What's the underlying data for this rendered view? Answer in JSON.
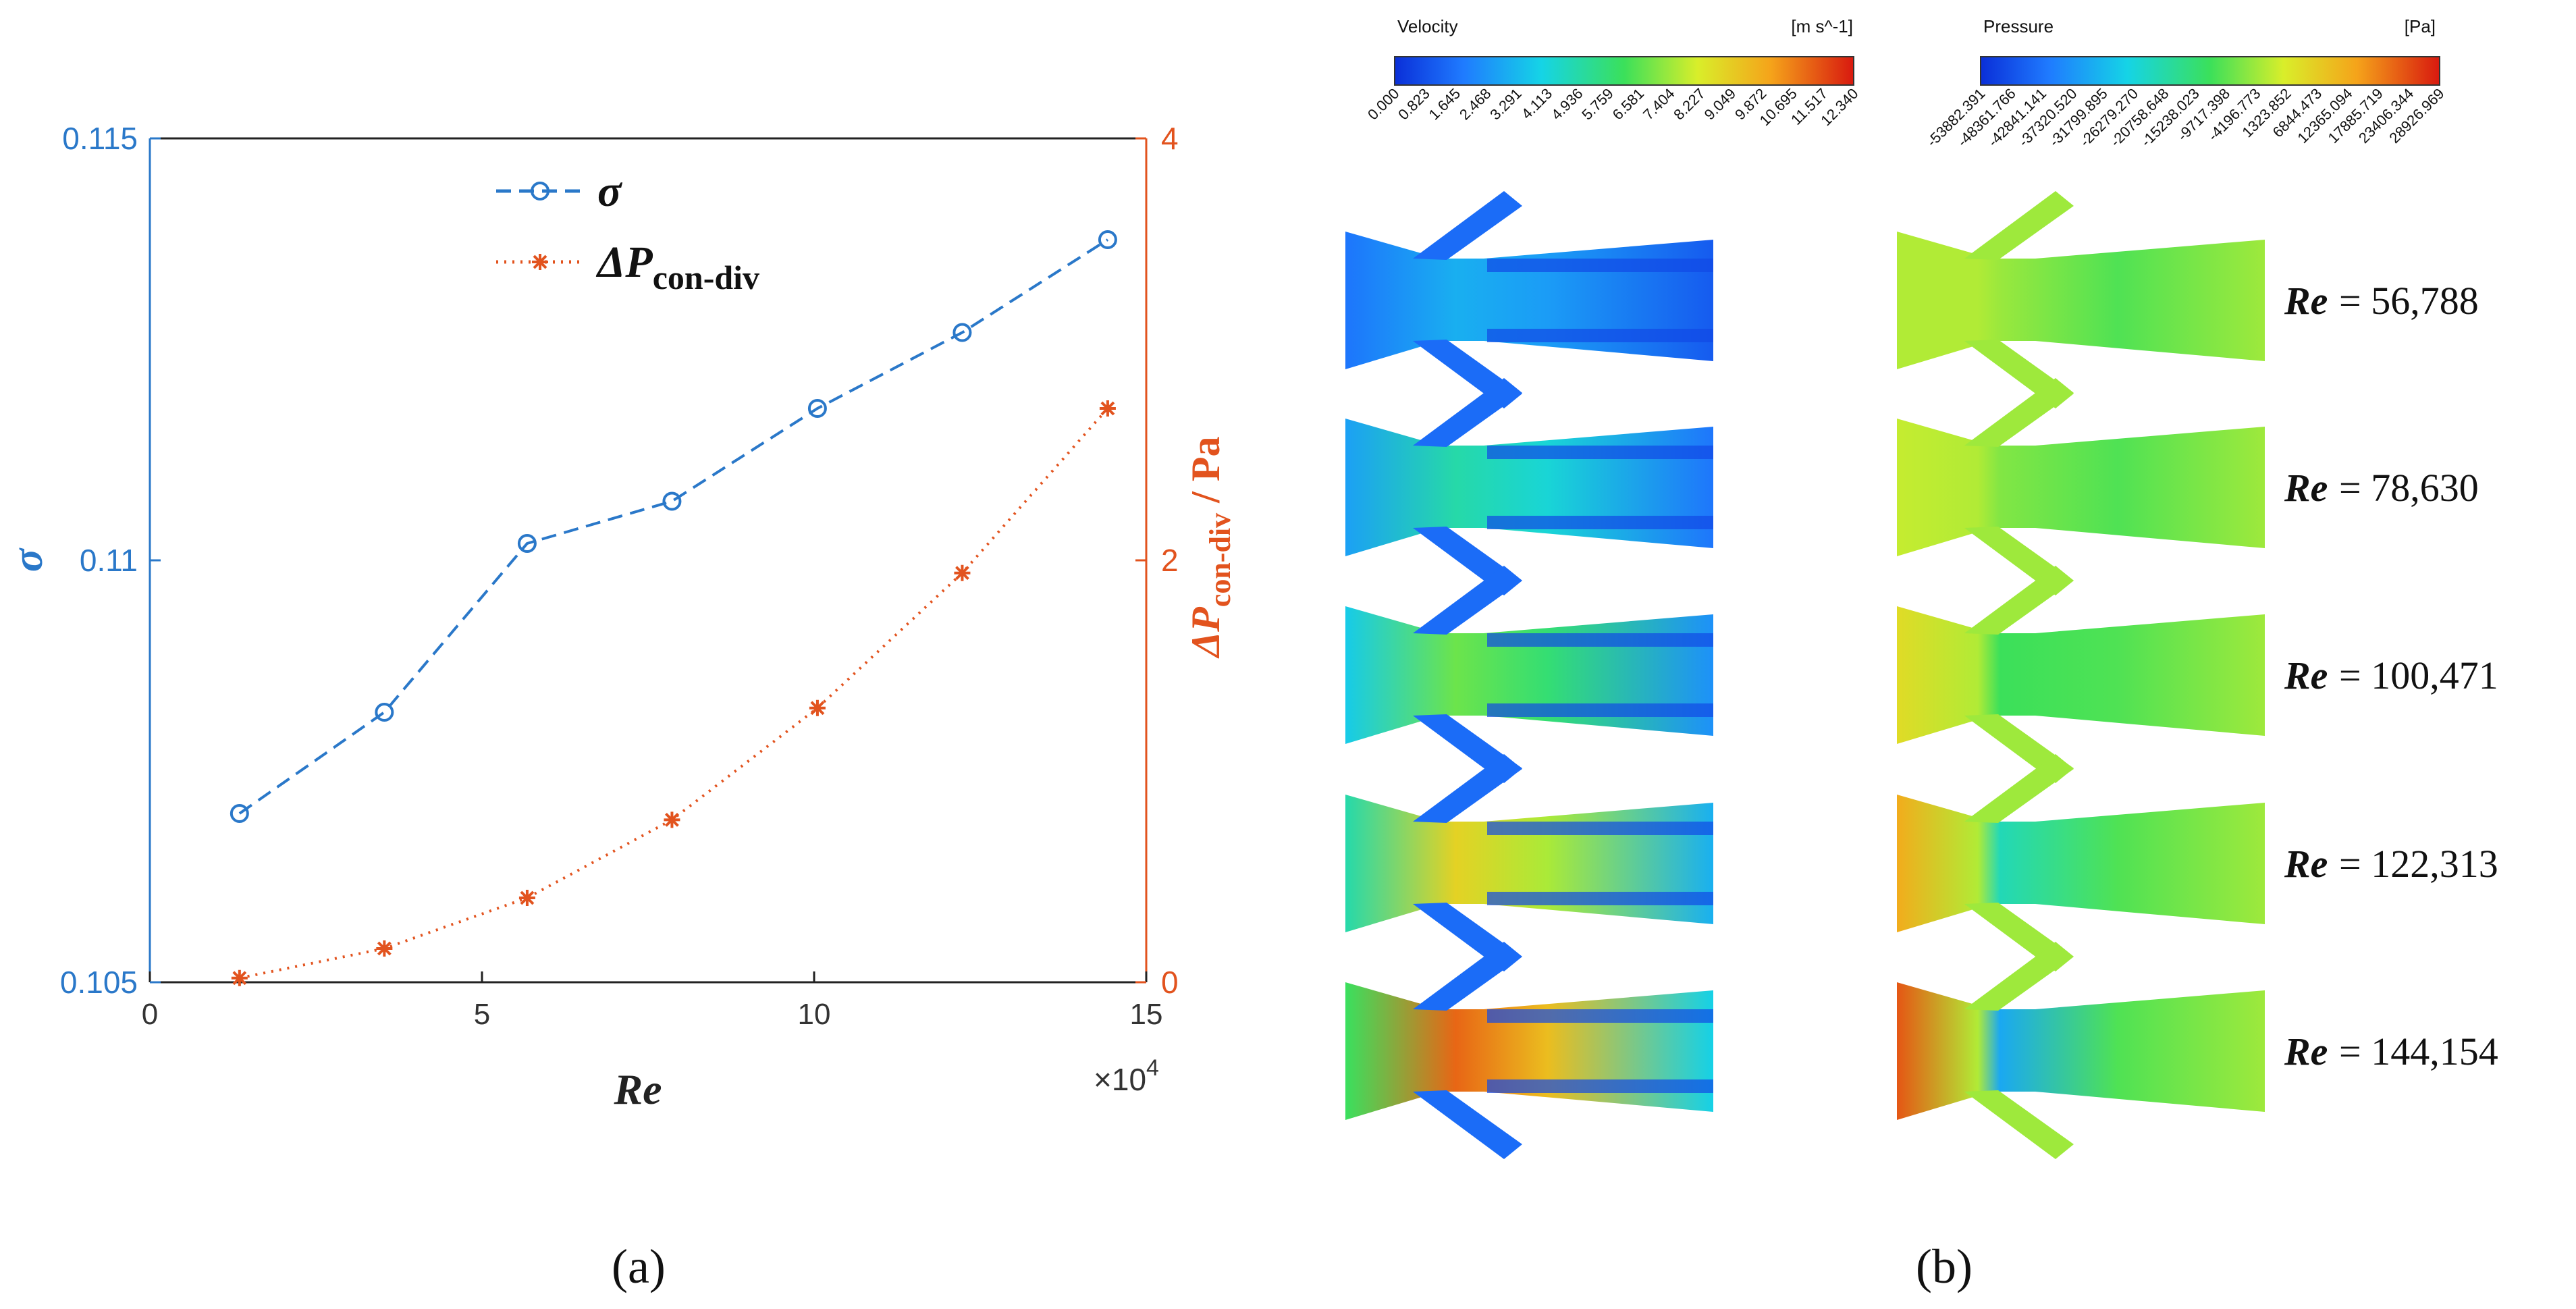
{
  "colors": {
    "sigma": "#2a78c9",
    "pressure_drop": "#e2531e",
    "axis": "#222222"
  },
  "chart_data": {
    "type": "line",
    "title": "",
    "xlabel": "Re",
    "x_scale_note": "×10",
    "x_scale_exp": "4",
    "ylabel_left": "σ",
    "ylabel_right_main": "ΔP",
    "ylabel_right_sub": "con-div",
    "ylabel_right_unit": " / Pa",
    "xlim": [
      0,
      15
    ],
    "ylim_left": [
      0.105,
      0.115
    ],
    "ylim_right": [
      0,
      4
    ],
    "x_ticks": [
      0,
      5,
      10,
      15
    ],
    "y_left_ticks": [
      0.105,
      0.11,
      0.115
    ],
    "y_left_tick_labels": [
      "0.105",
      "0.11",
      "0.115"
    ],
    "y_right_ticks": [
      0,
      2,
      4
    ],
    "y_right_tick_labels": [
      "0",
      "2",
      "4"
    ],
    "x": [
      1.35,
      3.53,
      5.68,
      7.86,
      10.05,
      12.23,
      14.42
    ],
    "series": [
      {
        "name": "σ",
        "axis": "left",
        "marker": "circle",
        "style": "dashed",
        "values": [
          0.107,
          0.1082,
          0.1102,
          0.1107,
          0.1118,
          0.1127,
          0.1138
        ]
      },
      {
        "name": "ΔP",
        "name_sub": "con-div",
        "axis": "right",
        "marker": "asterisk",
        "style": "dotted",
        "values": [
          0.02,
          0.16,
          0.4,
          0.77,
          1.3,
          1.94,
          2.72
        ]
      }
    ],
    "legend": "top-center"
  },
  "contours": {
    "velocity_bar": {
      "title": "Velocity",
      "unit": "[m s^-1]",
      "ticks": [
        "0.000",
        "0.823",
        "1.645",
        "2.468",
        "3.291",
        "4.113",
        "4.936",
        "5.759",
        "6.581",
        "7.404",
        "8.227",
        "9.049",
        "9.872",
        "10.695",
        "11.517",
        "12.340"
      ]
    },
    "pressure_bar": {
      "title": "Pressure",
      "unit": "[Pa]",
      "ticks": [
        "-53882.391",
        "-48361.766",
        "-42841.141",
        "-37320.520",
        "-31799.895",
        "-26279.270",
        "-20758.648",
        "-15238.023",
        "-9717.398",
        "-4196.773",
        "1323.852",
        "6844.473",
        "12365.094",
        "17885.719",
        "23406.344",
        "28926.969"
      ]
    },
    "cases": [
      {
        "re_prefix": "Re",
        "re_value": "= 56,788",
        "velocity_level": 0.25,
        "pressure_level": 0.62
      },
      {
        "re_prefix": "Re",
        "re_value": "= 78,630",
        "velocity_level": 0.4,
        "pressure_level": 0.64
      },
      {
        "re_prefix": "Re",
        "re_value": "= 100,471",
        "velocity_level": 0.55,
        "pressure_level": 0.7
      },
      {
        "re_prefix": "Re",
        "re_value": "= 122,313",
        "velocity_level": 0.72,
        "pressure_level": 0.8
      },
      {
        "re_prefix": "Re",
        "re_value": "= 144,154",
        "velocity_level": 0.9,
        "pressure_level": 0.92
      }
    ]
  },
  "captions": {
    "a": "(a)",
    "b": "(b)"
  }
}
